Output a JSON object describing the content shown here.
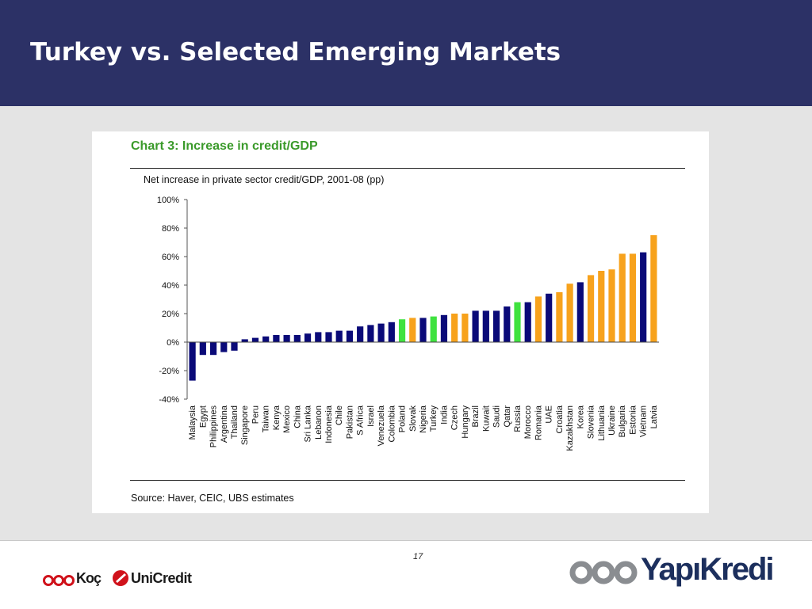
{
  "slide": {
    "title": "Turkey vs. Selected Emerging Markets",
    "page_number": "17"
  },
  "logos": {
    "koc": "Koç",
    "unicredit": "UniCredit",
    "yapikredi": "YapıKredi"
  },
  "colors": {
    "header_bg": "#2c3166",
    "bar_navy": "#0a0a78",
    "bar_orange": "#f7a21c",
    "bar_green": "#3fe23f",
    "chart_title": "#3a9a2a"
  },
  "chart_data": {
    "type": "bar",
    "title": "Chart 3: Increase in credit/GDP",
    "subtitle": "Net increase in private sector credit/GDP, 2001-08 (pp)",
    "source": "Source: Haver, CEIC, UBS estimates",
    "ylim": [
      -40,
      100
    ],
    "yticks": [
      "100%",
      "80%",
      "60%",
      "40%",
      "20%",
      "0%",
      "-20%",
      "-40%"
    ],
    "categories": [
      "Malaysia",
      "Egypt",
      "Philippines",
      "Argentina",
      "Thailand",
      "Singapore",
      "Peru",
      "Taiwan",
      "Kenya",
      "Mexico",
      "China",
      "Sri Lanka",
      "Lebanon",
      "Indonesia",
      "Chile",
      "Pakistan",
      "S Africa",
      "Israel",
      "Venezuela",
      "Colombia",
      "Poland",
      "Slovak",
      "Nigeria",
      "Turkey",
      "India",
      "Czech",
      "Hungary",
      "Brazil",
      "Kuwait",
      "Saudi",
      "Qatar",
      "Russia",
      "Morocco",
      "Romania",
      "UAE",
      "Croatia",
      "Kazakhstan",
      "Korea",
      "Slovenia",
      "Lithuania",
      "Ukraine",
      "Bulgaria",
      "Estonia",
      "Vietnam",
      "Latvia"
    ],
    "values": [
      -27,
      -9,
      -9,
      -7,
      -6,
      2,
      3,
      4,
      5,
      5,
      5,
      6,
      7,
      7,
      8,
      8,
      11,
      12,
      13,
      14,
      16,
      17,
      17,
      18,
      19,
      20,
      20,
      22,
      22,
      22,
      25,
      28,
      28,
      32,
      34,
      35,
      41,
      42,
      47,
      50,
      51,
      62,
      62,
      63,
      75
    ],
    "colors": [
      "navy",
      "navy",
      "navy",
      "navy",
      "navy",
      "navy",
      "navy",
      "navy",
      "navy",
      "navy",
      "navy",
      "navy",
      "navy",
      "navy",
      "navy",
      "navy",
      "navy",
      "navy",
      "navy",
      "navy",
      "green",
      "orange",
      "navy",
      "green",
      "navy",
      "orange",
      "orange",
      "navy",
      "navy",
      "navy",
      "navy",
      "green",
      "navy",
      "orange",
      "navy",
      "orange",
      "orange",
      "navy",
      "orange",
      "orange",
      "orange",
      "orange",
      "orange",
      "navy",
      "orange"
    ]
  }
}
